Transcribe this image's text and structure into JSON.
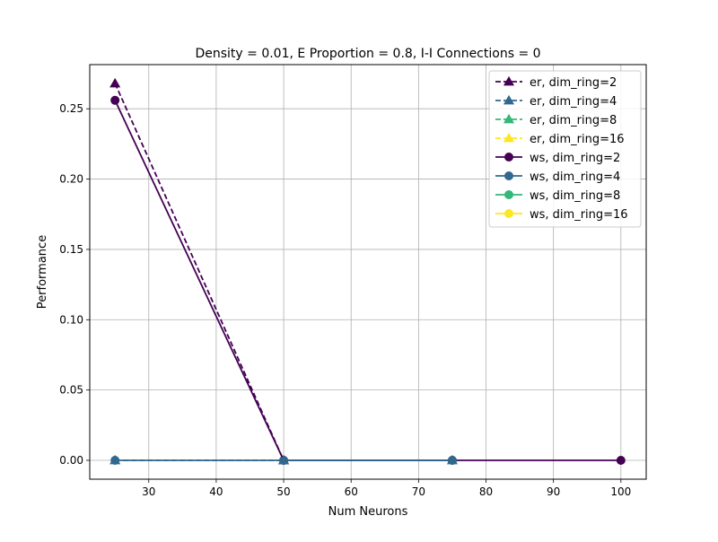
{
  "chart_data": {
    "type": "line",
    "title": "Density = 0.01, E Proportion = 0.8, I-I Connections = 0",
    "xlabel": "Num Neurons",
    "ylabel": "Performance",
    "xlim": [
      21.25,
      103.75
    ],
    "ylim": [
      -0.0134,
      0.2814
    ],
    "xticks": [
      30,
      40,
      50,
      60,
      70,
      80,
      90,
      100
    ],
    "yticks": [
      0.0,
      0.05,
      0.1,
      0.15,
      0.2,
      0.25
    ],
    "xtick_labels": [
      "30",
      "40",
      "50",
      "60",
      "70",
      "80",
      "90",
      "100"
    ],
    "ytick_labels": [
      "0.00",
      "0.05",
      "0.10",
      "0.15",
      "0.20",
      "0.25"
    ],
    "grid": true,
    "legend_position": "top-right",
    "series": [
      {
        "name": "er, dim_ring=2",
        "color": "#440154",
        "dash": true,
        "marker": "triangle",
        "x": [
          25,
          50
        ],
        "y": [
          0.268,
          0.0
        ]
      },
      {
        "name": "er, dim_ring=4",
        "color": "#31688e",
        "dash": true,
        "marker": "triangle",
        "x": [
          25,
          50,
          75
        ],
        "y": [
          0.0,
          0.0,
          0.0
        ]
      },
      {
        "name": "er, dim_ring=8",
        "color": "#35b779",
        "dash": true,
        "marker": "triangle",
        "x": [],
        "y": []
      },
      {
        "name": "er, dim_ring=16",
        "color": "#fde725",
        "dash": true,
        "marker": "triangle",
        "x": [],
        "y": []
      },
      {
        "name": "ws, dim_ring=2",
        "color": "#440154",
        "dash": false,
        "marker": "circle",
        "x": [
          25,
          50,
          75,
          100
        ],
        "y": [
          0.256,
          0.0,
          0.0,
          0.0
        ]
      },
      {
        "name": "ws, dim_ring=4",
        "color": "#31688e",
        "dash": false,
        "marker": "circle",
        "x": [
          25,
          50,
          75
        ],
        "y": [
          0.0,
          0.0,
          0.0
        ]
      },
      {
        "name": "ws, dim_ring=8",
        "color": "#35b779",
        "dash": false,
        "marker": "circle",
        "x": [],
        "y": []
      },
      {
        "name": "ws, dim_ring=16",
        "color": "#fde725",
        "dash": false,
        "marker": "circle",
        "x": [],
        "y": []
      }
    ]
  }
}
